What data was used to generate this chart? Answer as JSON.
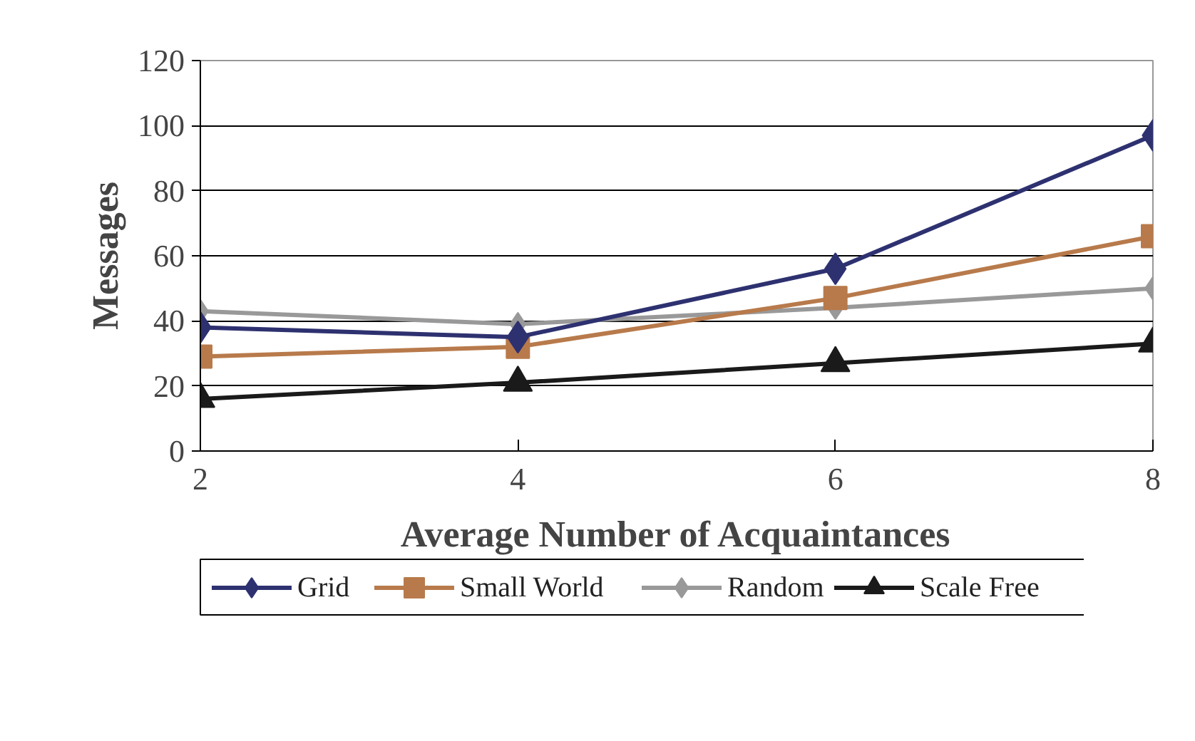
{
  "chart_data": {
    "type": "line",
    "xlabel": "Average Number of Acquaintances",
    "ylabel": "Messages",
    "x": [
      2,
      4,
      6,
      8
    ],
    "xlim": [
      2,
      8
    ],
    "xticks": [
      2,
      4,
      6,
      8
    ],
    "ylim": [
      0,
      120
    ],
    "yticks": [
      0,
      20,
      40,
      60,
      80,
      100,
      120
    ],
    "grid": "y",
    "legend": "bottom",
    "series": [
      {
        "name": "Grid",
        "color": "#2e3170",
        "marker": "diamond",
        "values": [
          38,
          35,
          56,
          97
        ]
      },
      {
        "name": "Small World",
        "color": "#b87a4b",
        "marker": "square",
        "values": [
          29,
          32,
          47,
          66
        ]
      },
      {
        "name": "Random",
        "color": "#999999",
        "marker": "diamond",
        "values": [
          43,
          39,
          44,
          50
        ]
      },
      {
        "name": "Scale Free",
        "color": "#1a1a1a",
        "marker": "triangle",
        "values": [
          16,
          21,
          27,
          33
        ]
      }
    ]
  }
}
